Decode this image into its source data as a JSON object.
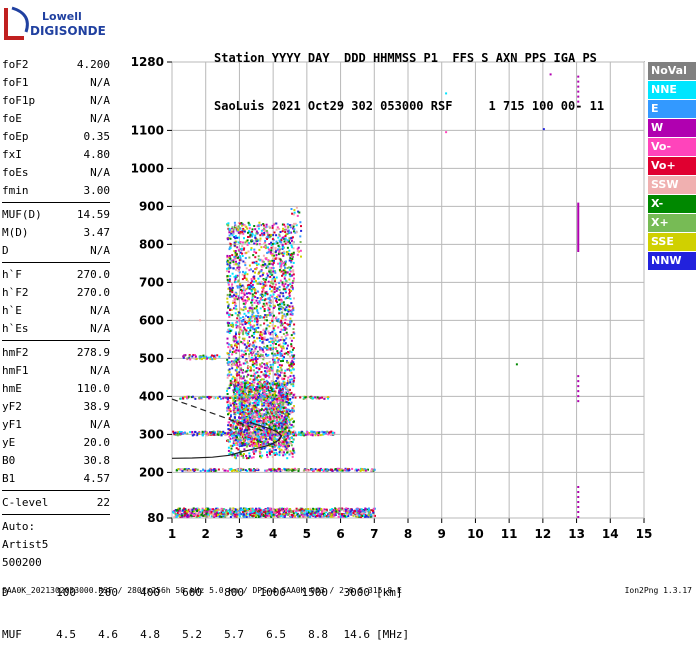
{
  "logo": {
    "line1": "Lowell",
    "line2": "DIGISONDE"
  },
  "header": {
    "line1": "Station YYYY DAY  DDD HHMMSS P1  FFS S AXN PPS IGA PS",
    "line2": "SaoLuis 2021 Oct29 302 053000 RSF     1 715 100 00- 11"
  },
  "params_group1": [
    {
      "k": "foF2",
      "v": "4.200"
    },
    {
      "k": "foF1",
      "v": "N/A"
    },
    {
      "k": "foF1p",
      "v": "N/A"
    },
    {
      "k": "foE",
      "v": "N/A"
    },
    {
      "k": "foEp",
      "v": "0.35"
    },
    {
      "k": "fxI",
      "v": "4.80"
    },
    {
      "k": "foEs",
      "v": "N/A"
    },
    {
      "k": "fmin",
      "v": "3.00"
    }
  ],
  "params_group2": [
    {
      "k": "MUF(D)",
      "v": "14.59"
    },
    {
      "k": "M(D)",
      "v": "3.47"
    },
    {
      "k": "D",
      "v": "N/A"
    }
  ],
  "params_group3": [
    {
      "k": "h`F",
      "v": "270.0"
    },
    {
      "k": "h`F2",
      "v": "270.0"
    },
    {
      "k": "h`E",
      "v": "N/A"
    },
    {
      "k": "h`Es",
      "v": "N/A"
    }
  ],
  "params_group4": [
    {
      "k": "hmF2",
      "v": "278.9"
    },
    {
      "k": "hmF1",
      "v": "N/A"
    },
    {
      "k": "hmE",
      "v": "110.0"
    },
    {
      "k": "yF2",
      "v": "38.9"
    },
    {
      "k": "yF1",
      "v": "N/A"
    },
    {
      "k": "yE",
      "v": "20.0"
    },
    {
      "k": "B0",
      "v": "30.8"
    },
    {
      "k": "B1",
      "v": "4.57"
    }
  ],
  "params_group5": [
    {
      "k": "C-level",
      "v": "22"
    }
  ],
  "auto_lines": [
    "Auto:",
    "Artist5",
    "500200"
  ],
  "legend": [
    {
      "label": "NoVal",
      "color": "#808080"
    },
    {
      "label": "NNE",
      "color": "#00e5ff"
    },
    {
      "label": "E",
      "color": "#3399ff"
    },
    {
      "label": "W",
      "color": "#b000b0"
    },
    {
      "label": "Vo-",
      "color": "#ff44bb"
    },
    {
      "label": "Vo+",
      "color": "#e00030"
    },
    {
      "label": "SSW",
      "color": "#f0b0b0"
    },
    {
      "label": "X-",
      "color": "#008800"
    },
    {
      "label": "X+",
      "color": "#77bb55"
    },
    {
      "label": "SSE",
      "color": "#d0d000"
    },
    {
      "label": "NNW",
      "color": "#2222dd"
    }
  ],
  "muf_table": {
    "d_label": "D",
    "d_values": [
      "100",
      "200",
      "400",
      "600",
      "800",
      "1000",
      "1500",
      "3000"
    ],
    "d_unit": "[km]",
    "muf_label": "MUF",
    "muf_values": [
      "4.5",
      "4.6",
      "4.8",
      "5.2",
      "5.7",
      "6.5",
      "8.8",
      "14.6"
    ],
    "muf_unit": "[MHz]"
  },
  "footer": "SAA0K_2021302053000.RSF / 280fx256h 50 kHz 5.0 km / DPS-4 SAA0K 903 / 2.6 S 315.8 E",
  "version": "Ion2Png 1.3.17",
  "chart_data": {
    "type": "scatter",
    "xlim": [
      1,
      15
    ],
    "ylim": [
      80,
      1280
    ],
    "x_ticks": [
      1,
      2,
      3,
      4,
      5,
      6,
      7,
      8,
      9,
      10,
      11,
      12,
      13,
      14,
      15
    ],
    "y_ticks": [
      80,
      200,
      300,
      400,
      500,
      600,
      700,
      800,
      900,
      1000,
      1100,
      1280
    ],
    "grid": true,
    "legend_position": "right",
    "bands": [
      {
        "x0": 1.0,
        "x1": 7.0,
        "y0": 85,
        "y1": 108,
        "n": 1000
      },
      {
        "x0": 1.1,
        "x1": 7.0,
        "y0": 206,
        "y1": 212,
        "n": 260
      },
      {
        "x0": 1.0,
        "x1": 5.8,
        "y0": 300,
        "y1": 310,
        "n": 320
      },
      {
        "x0": 1.2,
        "x1": 5.7,
        "y0": 396,
        "y1": 402,
        "n": 140
      },
      {
        "x0": 1.3,
        "x1": 2.4,
        "y0": 500,
        "y1": 512,
        "n": 50
      },
      {
        "x0": 2.6,
        "x1": 4.6,
        "y0": 240,
        "y1": 860,
        "n": 2600
      },
      {
        "x0": 2.8,
        "x1": 4.4,
        "y0": 270,
        "y1": 440,
        "n": 1100
      },
      {
        "x0": 4.4,
        "x1": 4.8,
        "y0": 770,
        "y1": 900,
        "n": 40
      }
    ],
    "points": [
      {
        "x": 9.1,
        "y": 1200
      },
      {
        "x": 9.1,
        "y": 1098
      },
      {
        "x": 11.2,
        "y": 487
      },
      {
        "x": 12.0,
        "y": 1106
      },
      {
        "x": 12.2,
        "y": 1250
      },
      {
        "x": 1.8,
        "y": 603
      }
    ],
    "vertical_lines": [
      {
        "x": 13.05,
        "y0": 80,
        "y1": 170
      },
      {
        "x": 13.05,
        "y0": 780,
        "y1": 910
      },
      {
        "x": 13.05,
        "y0": 1160,
        "y1": 1250
      },
      {
        "x": 13.05,
        "y0": 385,
        "y1": 460
      }
    ],
    "profile_curves": [
      {
        "style": "solid",
        "points": [
          [
            1.0,
            237
          ],
          [
            1.6,
            238
          ],
          [
            2.2,
            240
          ],
          [
            2.7,
            245
          ],
          [
            3.1,
            255
          ],
          [
            3.6,
            265
          ],
          [
            3.9,
            272
          ],
          [
            4.15,
            284
          ],
          [
            4.25,
            296
          ],
          [
            4.1,
            308
          ],
          [
            3.8,
            318
          ],
          [
            3.5,
            326
          ],
          [
            3.3,
            333
          ]
        ]
      },
      {
        "style": "dashed",
        "points": [
          [
            1.0,
            393
          ],
          [
            1.5,
            378
          ],
          [
            2.0,
            362
          ],
          [
            2.5,
            346
          ],
          [
            3.0,
            330
          ],
          [
            3.4,
            318
          ],
          [
            3.7,
            310
          ]
        ]
      }
    ]
  }
}
